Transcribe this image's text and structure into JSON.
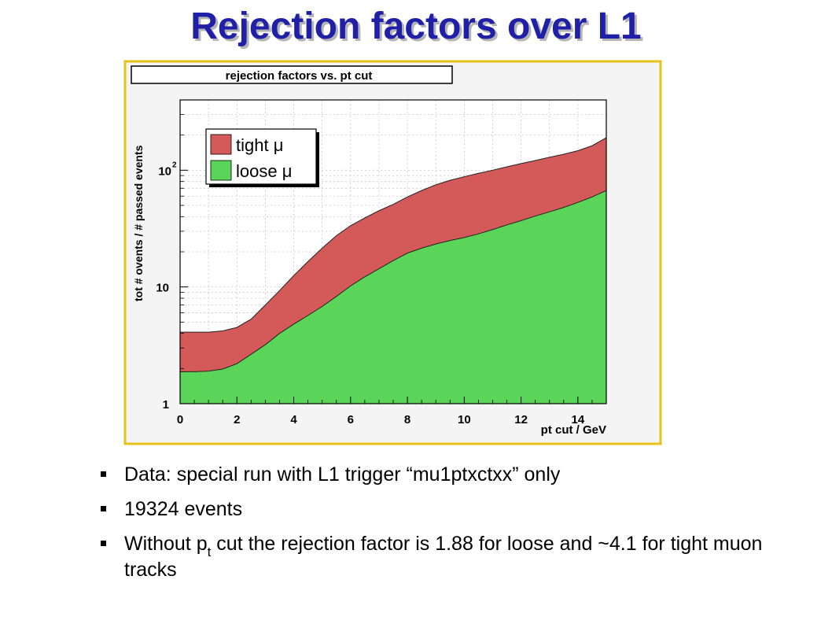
{
  "slide": {
    "title": "Rejection factors over L1"
  },
  "chart_data": {
    "type": "area",
    "title": "rejection factors vs. pt cut",
    "xlabel": "pt cut / GeV",
    "ylabel": "tot # ovents / # passed events",
    "xlim": [
      0,
      15
    ],
    "ylim": [
      1,
      400
    ],
    "y_scale": "log",
    "grid": true,
    "legend_position": "top-left",
    "x_ticks": [
      "0",
      "2",
      "4",
      "6",
      "8",
      "10",
      "12",
      "14"
    ],
    "y_ticks": [
      "1",
      "10",
      "10²"
    ],
    "x": [
      0,
      0.5,
      1,
      1.5,
      2,
      2.5,
      3,
      3.5,
      4,
      4.5,
      5,
      5.5,
      6,
      6.5,
      7,
      7.5,
      8,
      8.5,
      9,
      9.5,
      10,
      10.5,
      11,
      11.5,
      12,
      12.5,
      13,
      13.5,
      14,
      14.5,
      15
    ],
    "series": [
      {
        "name": "tight μ",
        "color": "#d45a5a",
        "values": [
          4.1,
          4.1,
          4.1,
          4.2,
          4.5,
          5.3,
          7.0,
          9.3,
          12.5,
          16.5,
          21.5,
          27.5,
          33.5,
          39,
          45,
          51,
          59,
          67,
          75,
          82,
          88,
          94,
          100,
          107,
          114,
          121,
          129,
          137,
          147,
          162,
          190
        ]
      },
      {
        "name": "loose μ",
        "color": "#5ad55a",
        "values": [
          1.88,
          1.88,
          1.9,
          1.98,
          2.2,
          2.65,
          3.2,
          4.0,
          4.8,
          5.7,
          6.8,
          8.3,
          10.2,
          12.2,
          14.3,
          16.8,
          19.5,
          21.5,
          23.3,
          25,
          26.5,
          28.5,
          31,
          34,
          37,
          40.5,
          44,
          48,
          53,
          59,
          67
        ]
      }
    ]
  },
  "bullets": [
    {
      "text": "Data: special run with L1 trigger “mu1ptxctxx” only"
    },
    {
      "text": "19324 events"
    },
    {
      "pre": "Without p",
      "sub": "t",
      "post": " cut the rejection factor is 1.88 for loose and ~4.1 for tight muon tracks"
    }
  ]
}
